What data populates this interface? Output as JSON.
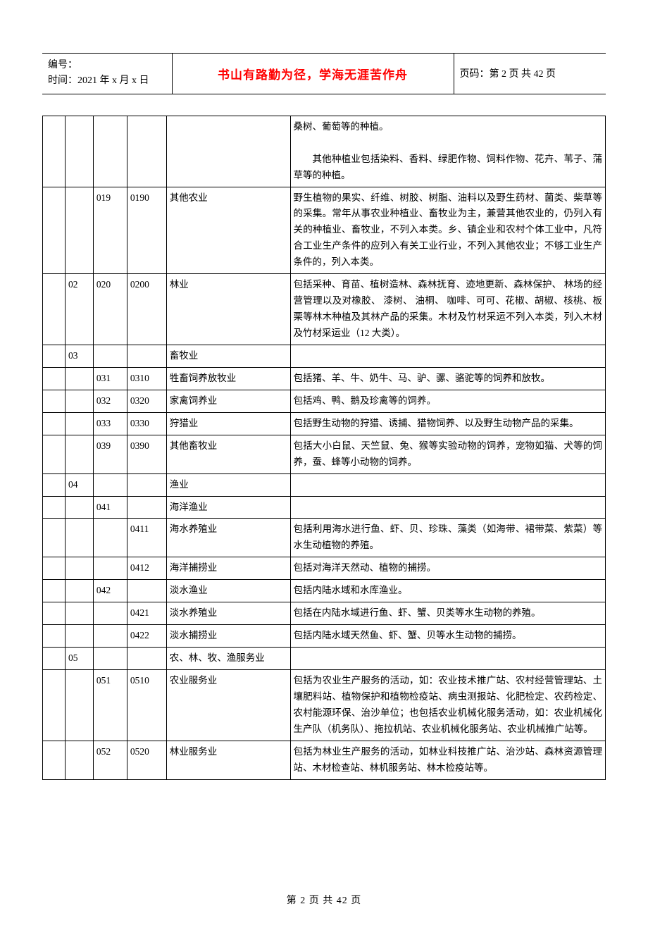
{
  "header": {
    "id_label": "编号：",
    "time_label": "时间：2021 年 x 月 x 日",
    "motto": "书山有路勤为径，学海无涯苦作舟",
    "page_label": "页码：第 2 页  共 42 页"
  },
  "rows": [
    {
      "a": "",
      "b": "",
      "c": "",
      "d": "",
      "name": "",
      "desc_html": "桑树、葡萄等的种植。<br><br><p class='para-indent'>其他种植业包括染料、香料、绿肥作物、饲料作物、花卉、苇子、蒲草等的种植。</p>"
    },
    {
      "a": "",
      "b": "",
      "c": "019",
      "d": "0190",
      "name": "其他农业",
      "name_class": "indent1",
      "desc": "野生植物的果实、纤维、树胶、树脂、油料以及野生药材、菌类、柴草等的采集。常年从事农业种植业、畜牧业为主，兼营其他农业的，仍列入有关的种植业、畜牧业，不列入本类。乡、镇企业和农村个体工业中，凡符合工业生产条件的应列入有关工业行业，不列入其他农业；不够工业生产条件的，列入本类。"
    },
    {
      "a": "",
      "b": "02",
      "c": "020",
      "d": "0200",
      "name": "林业",
      "desc": "包括采种、育苗、植树造林、森林抚育、迹地更新、森林保护、 林场的经营管理以及对橡胶、 漆树、 油桐、 咖啡、可可、花椒、胡椒、核桃、板栗等林木种植及其林产品的采集。木材及竹材采运不列入本类，列入木材及竹材采运业（12 大类）。"
    },
    {
      "a": "",
      "b": "03",
      "c": "",
      "d": "",
      "name": "畜牧业",
      "desc": ""
    },
    {
      "a": "",
      "b": "",
      "c": "031",
      "d": "0310",
      "name": "牲畜饲养放牧业",
      "name_class": "indent1",
      "desc": "包括猪、羊、牛、奶牛、马、驴、骡、骆驼等的饲养和放牧。"
    },
    {
      "a": "",
      "b": "",
      "c": "032",
      "d": "0320",
      "name": "家禽饲养业",
      "name_class": "indent1",
      "desc": "包括鸡、鸭、鹅及珍禽等的饲养。"
    },
    {
      "a": "",
      "b": "",
      "c": "033",
      "d": "0330",
      "name": "狩猎业",
      "name_class": "indent1",
      "desc": "包括野生动物的狩猎、诱捕、猎物饲养、以及野生动物产品的采集。"
    },
    {
      "a": "",
      "b": "",
      "c": "039",
      "d": "0390",
      "name": "其他畜牧业",
      "name_class": "indent1",
      "desc": "包括大小白鼠、天竺鼠、兔、猴等实验动物的饲养，宠物如猫、犬等的饲养，蚕、蜂等小动物的饲养。"
    },
    {
      "a": "",
      "b": "04",
      "c": "",
      "d": "",
      "name": "渔业",
      "desc": ""
    },
    {
      "a": "",
      "b": "",
      "c": "041",
      "d": "",
      "name": "海洋渔业",
      "name_class": "indent1",
      "desc": ""
    },
    {
      "a": "",
      "b": "",
      "c": "",
      "d": "0411",
      "name": "海水养殖业",
      "name_class": "indent2",
      "desc": "包括利用海水进行鱼、虾、贝、珍珠、藻类（如海带、裙带菜、紫菜）等水生动植物的养殖。"
    },
    {
      "a": "",
      "b": "",
      "c": "",
      "d": "0412",
      "name": "海洋捕捞业",
      "name_class": "indent2",
      "desc": "包括对海洋天然动、植物的捕捞。"
    },
    {
      "a": "",
      "b": "",
      "c": "042",
      "d": "",
      "name": "淡水渔业",
      "name_class": "indent1",
      "desc": "包括内陆水域和水库渔业。"
    },
    {
      "a": "",
      "b": "",
      "c": "",
      "d": "0421",
      "name": "淡水养殖业",
      "name_class": "indent2",
      "desc": "包括在内陆水域进行鱼、虾、蟹、贝类等水生动物的养殖。"
    },
    {
      "a": "",
      "b": "",
      "c": "",
      "d": "0422",
      "name": "淡水捕捞业",
      "name_class": "indent2",
      "desc": "包括内陆水域天然鱼、虾、蟹、贝等水生动物的捕捞。"
    },
    {
      "a": "",
      "b": "05",
      "c": "",
      "d": "",
      "name": "农、林、牧、渔服务业",
      "desc": ""
    },
    {
      "a": "",
      "b": "",
      "c": "051",
      "d": "0510",
      "name": "农业服务业",
      "name_class": "indent1",
      "desc": "包括为农业生产服务的活动，如：农业技术推广站、农村经营管理站、土壤肥料站、植物保护和植物检疫站、病虫测报站、化肥检定、农药检定、农村能源环保、治沙单位；也包括农业机械化服务活动，如：农业机械化生产队（机务队）、拖拉机站、农业机械化服务站、农业机械推广站等。"
    },
    {
      "a": "",
      "b": "",
      "c": "052",
      "d": "0520",
      "name": "林业服务业",
      "name_class": "indent1",
      "desc": "包括为林业生产服务的活动，如林业科技推广站、治沙站、森林资源管理站、木材检查站、林机服务站、林木检疫站等。"
    }
  ],
  "footer": "第  2  页  共  42  页"
}
